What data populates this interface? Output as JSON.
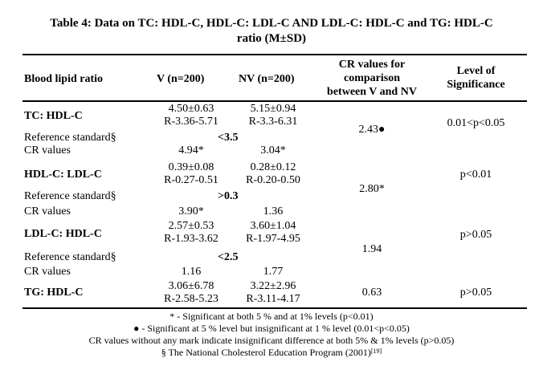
{
  "title": {
    "line1": "Table 4: Data on TC: HDL-C, HDL-C: LDL-C AND LDL-C: HDL-C and TG: HDL-C",
    "line2": "ratio (M±SD)"
  },
  "columns": {
    "ratio": "Blood lipid ratio",
    "v": "V (n=200)",
    "nv": "NV (n=200)",
    "cr_line1": "CR values for",
    "cr_line2": "comparison",
    "cr_line3": "between V and NV",
    "sig_line1": "Level of",
    "sig_line2": "Significance"
  },
  "groups": [
    {
      "name": "TC: HDL-C",
      "v_mean": "4.50±0.63",
      "v_range": "R-3.36-5.71",
      "nv_mean": "5.15±0.94",
      "nv_range": "R-3.3-6.31",
      "reference_label": "Reference standard§",
      "reference_value": "<3.5",
      "cr_label": "CR values",
      "v_cr": "4.94*",
      "nv_cr": "3.04*",
      "comparison_cr": "2.43●",
      "significance": "0.01<p<0.05"
    },
    {
      "name": "HDL-C: LDL-C",
      "v_mean": "0.39±0.08",
      "v_range": "R-0.27-0.51",
      "nv_mean": "0.28±0.12",
      "nv_range": "R-0.20-0.50",
      "reference_label": "Reference standard§",
      "reference_value": ">0.3",
      "cr_label": "CR values",
      "v_cr": "3.90*",
      "nv_cr": "1.36",
      "comparison_cr": "2.80*",
      "significance": "p<0.01"
    },
    {
      "name": "LDL-C: HDL-C",
      "v_mean": "2.57±0.53",
      "v_range": "R-1.93-3.62",
      "nv_mean": "3.60±1.04",
      "nv_range": "R-1.97-4.95",
      "reference_label": "Reference standard§",
      "reference_value": "<2.5",
      "cr_label": "CR values",
      "v_cr": "1.16",
      "nv_cr": "1.77",
      "comparison_cr": "1.94",
      "significance": "p>0.05"
    },
    {
      "name": "TG: HDL-C",
      "v_mean": "3.06±6.78",
      "v_range": "R-2.58-5.23",
      "nv_mean": "3.22±2.96",
      "nv_range": "R-3.11-4.17",
      "comparison_cr": "0.63",
      "significance": "p>0.05"
    }
  ],
  "footnotes": {
    "star": "* - Significant at both 5 % and at 1% levels (p<0.01)",
    "dot": "● - Significant at 5 % level but insignificant at 1 % level (0.01<p<0.05)",
    "none": "CR values without any mark indicate insignificant difference at both 5% & 1% levels (p>0.05)",
    "source": "§ The National Cholesterol Education Program (2001)",
    "source_ref": "[19]"
  }
}
